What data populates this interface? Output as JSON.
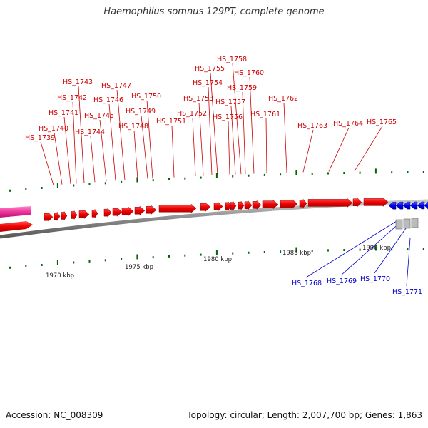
{
  "title": "Haemophilus somnus 129PT, complete genome",
  "footer": {
    "accession": "Accession: NC_008309",
    "summary": "Topology: circular; Length: 2,007,700 bp; Genes: 1,863"
  },
  "colors": {
    "forward_gene": "#ee0000",
    "reverse_gene": "#0000ee",
    "forward_label": "#cc0000",
    "reverse_label": "#0000cc",
    "pink_feature": "#ee3399",
    "backbone": "#888888",
    "tick": "#006600"
  },
  "scale_labels": [
    "1970 kbp",
    "1975 kbp",
    "1980 kbp",
    "1985 kbp",
    "1990 kbp"
  ],
  "forward_gene_labels": [
    "HS_1739",
    "HS_1740",
    "HS_1741",
    "HS_1742",
    "HS_1743",
    "HS_1744",
    "HS_1745",
    "HS_1746",
    "HS_1747",
    "HS_1748",
    "HS_1749",
    "HS_1750",
    "HS_1751",
    "HS_1752",
    "HS_1753",
    "HS_1754",
    "HS_1755",
    "HS_1756",
    "HS_1757",
    "HS_1758",
    "HS_1759",
    "HS_1760",
    "HS_1761",
    "HS_1762",
    "HS_1763",
    "HS_1764",
    "HS_1765"
  ],
  "reverse_gene_labels": [
    "HS_1768",
    "HS_1769",
    "HS_1770",
    "HS_1771"
  ]
}
